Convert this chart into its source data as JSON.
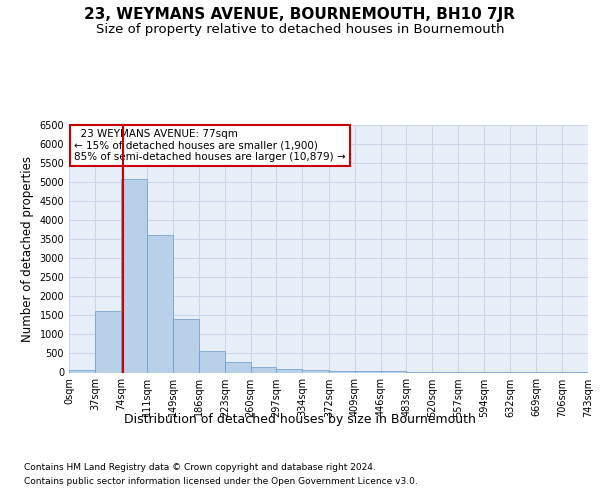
{
  "title": "23, WEYMANS AVENUE, BOURNEMOUTH, BH10 7JR",
  "subtitle": "Size of property relative to detached houses in Bournemouth",
  "xlabel": "Distribution of detached houses by size in Bournemouth",
  "ylabel": "Number of detached properties",
  "footnote1": "Contains HM Land Registry data © Crown copyright and database right 2024.",
  "footnote2": "Contains public sector information licensed under the Open Government Licence v3.0.",
  "property_size": 77,
  "bin_edges": [
    0,
    37,
    74,
    111,
    149,
    186,
    223,
    260,
    297,
    334,
    372,
    409,
    446,
    483,
    520,
    557,
    594,
    632,
    669,
    706,
    743
  ],
  "bin_labels": [
    "0sqm",
    "37sqm",
    "74sqm",
    "111sqm",
    "149sqm",
    "186sqm",
    "223sqm",
    "260sqm",
    "297sqm",
    "334sqm",
    "372sqm",
    "409sqm",
    "446sqm",
    "483sqm",
    "520sqm",
    "557sqm",
    "594sqm",
    "632sqm",
    "669sqm",
    "706sqm",
    "743sqm"
  ],
  "bar_heights": [
    75,
    1625,
    5075,
    3600,
    1400,
    575,
    280,
    140,
    100,
    75,
    50,
    40,
    30,
    20,
    15,
    10,
    5,
    5,
    5,
    5
  ],
  "bar_color": "#b8d0e8",
  "bar_edgecolor": "#6699cc",
  "vline_color": "#cc0000",
  "vline_x": 77,
  "annotation_text": "  23 WEYMANS AVENUE: 77sqm\n← 15% of detached houses are smaller (1,900)\n85% of semi-detached houses are larger (10,879) →",
  "annotation_box_color": "#ffffff",
  "annotation_box_edgecolor": "#cc0000",
  "ylim": [
    0,
    6500
  ],
  "grid_color": "#c8d4e8",
  "bg_color": "#e8eef8",
  "title_fontsize": 11,
  "subtitle_fontsize": 9.5,
  "ylabel_fontsize": 8.5,
  "xlabel_fontsize": 9,
  "tick_fontsize": 7,
  "annotation_fontsize": 7.5,
  "footnote_fontsize": 6.5
}
